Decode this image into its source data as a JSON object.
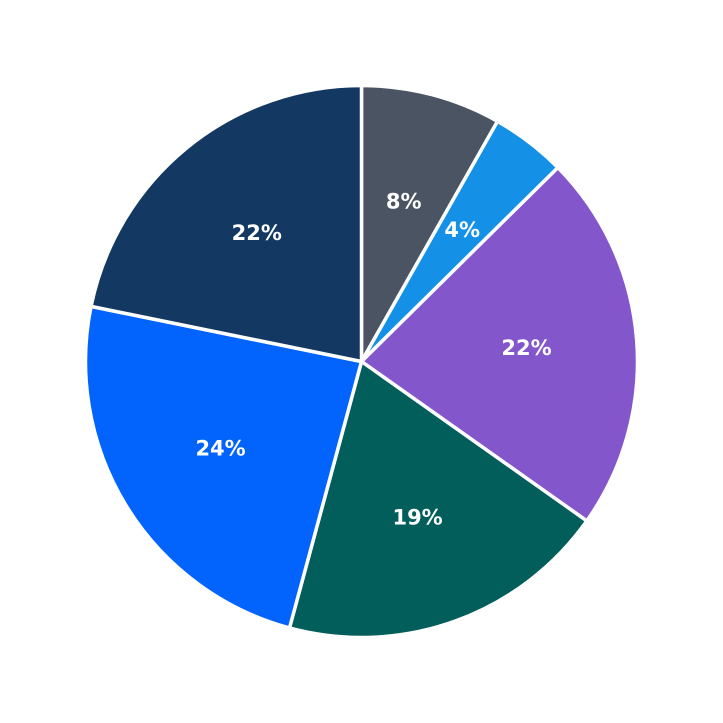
{
  "chart_data": {
    "type": "pie",
    "start_angle": "12 o'clock",
    "direction": "clockwise",
    "legend": "none",
    "slices": [
      {
        "label": "8%",
        "value": 8.2,
        "color": "#4a5462"
      },
      {
        "label": "4%",
        "value": 4.4,
        "color": "#1490e6"
      },
      {
        "label": "22%",
        "value": 22.2,
        "color": "#8456cc"
      },
      {
        "label": "19%",
        "value": 19.4,
        "color": "#025e5b"
      },
      {
        "label": "24%",
        "value": 24.0,
        "color": "#0364fd"
      },
      {
        "label": "22%",
        "value": 21.8,
        "color": "#133962"
      }
    ]
  }
}
